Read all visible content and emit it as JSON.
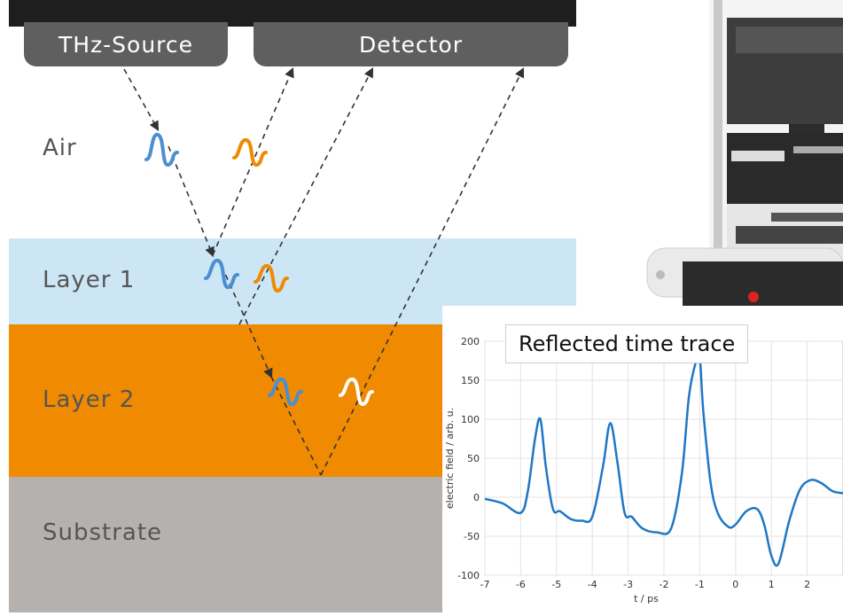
{
  "diagram": {
    "source_label": "THz-Source",
    "detector_label": "Detector",
    "layers": [
      {
        "label": "Air",
        "color": "#ffffff",
        "text_color": "#555555"
      },
      {
        "label": "Layer 1",
        "color": "#cce6f6",
        "text_color": "#555555"
      },
      {
        "label": "Layer 2",
        "color": "#f08a00",
        "text_color": "#555555"
      },
      {
        "label": "Substrate",
        "color": "#b5b1af",
        "text_color": "#555555"
      }
    ],
    "colors": {
      "tab": "#5f5f5f",
      "bar": "#1e1e1e",
      "wave_blue": "#4a8fd0",
      "wave_orange": "#f08a00",
      "wave_white": "#ffffff"
    }
  },
  "chart_data": {
    "type": "line",
    "title": "Reflected time trace",
    "xlabel": "t / ps",
    "ylabel": "electric field / arb. u.",
    "xlim": [
      -7,
      3
    ],
    "ylim": [
      -100,
      200
    ],
    "xticks": [
      -7,
      -6,
      -5,
      -4,
      -3,
      -2,
      -1,
      0,
      1,
      2
    ],
    "yticks": [
      -100,
      -50,
      0,
      50,
      100,
      150,
      200
    ],
    "grid": true,
    "color": "#1f77c4",
    "x": [
      -7,
      -6.5,
      -6,
      -5.8,
      -5.6,
      -5.45,
      -5.3,
      -5.1,
      -4.9,
      -4.6,
      -4.3,
      -4.0,
      -3.7,
      -3.5,
      -3.3,
      -3.1,
      -2.9,
      -2.6,
      -2.2,
      -1.8,
      -1.5,
      -1.3,
      -1.1,
      -1.0,
      -0.9,
      -0.7,
      -0.5,
      -0.2,
      0.0,
      0.3,
      0.6,
      0.8,
      1.0,
      1.2,
      1.5,
      1.8,
      2.1,
      2.4,
      2.7,
      3.0
    ],
    "values": [
      -2,
      -8,
      -20,
      8,
      75,
      100,
      40,
      -15,
      -18,
      -28,
      -30,
      -25,
      40,
      95,
      45,
      -20,
      -25,
      -40,
      -45,
      -40,
      30,
      130,
      175,
      180,
      110,
      20,
      -20,
      -38,
      -35,
      -18,
      -15,
      -35,
      -75,
      -85,
      -30,
      10,
      22,
      18,
      8,
      5
    ]
  }
}
